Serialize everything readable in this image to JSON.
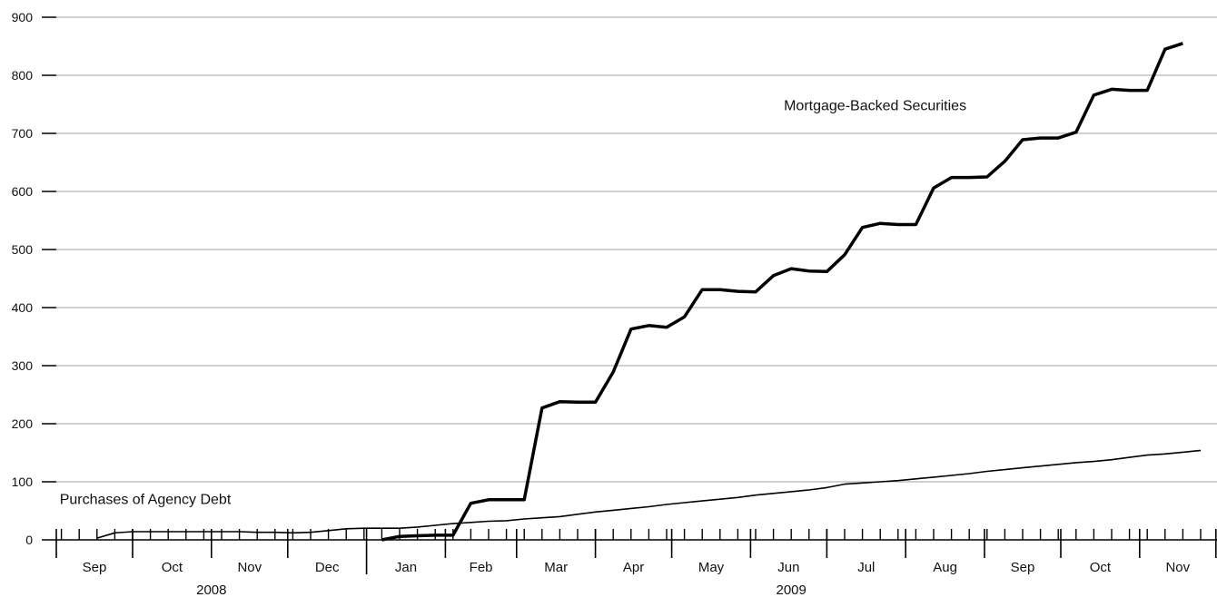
{
  "chart_data": {
    "type": "line",
    "title": "",
    "xlabel": "",
    "ylabel": "",
    "ylim": [
      0,
      900
    ],
    "yticks": [
      0,
      100,
      200,
      300,
      400,
      500,
      600,
      700,
      800,
      900
    ],
    "grid": true,
    "months": [
      {
        "label": "Sep",
        "year": 2008
      },
      {
        "label": "Oct",
        "year": 2008
      },
      {
        "label": "Nov",
        "year": 2008
      },
      {
        "label": "Dec",
        "year": 2008
      },
      {
        "label": "Jan",
        "year": 2009
      },
      {
        "label": "Feb",
        "year": 2009
      },
      {
        "label": "Mar",
        "year": 2009
      },
      {
        "label": "Apr",
        "year": 2009
      },
      {
        "label": "May",
        "year": 2009
      },
      {
        "label": "Jun",
        "year": 2009
      },
      {
        "label": "Jul",
        "year": 2009
      },
      {
        "label": "Aug",
        "year": 2009
      },
      {
        "label": "Sep",
        "year": 2009
      },
      {
        "label": "Oct",
        "year": 2009
      },
      {
        "label": "Nov",
        "year": 2009
      }
    ],
    "years": [
      {
        "label": "2008",
        "first_month": 0,
        "last_month": 3
      },
      {
        "label": "2009",
        "first_month": 4,
        "last_month": 14
      }
    ],
    "series": [
      {
        "name": "Mortgage-Backed Securities",
        "style": "thick",
        "color": "#000000",
        "points": [
          [
            "2009-01-07",
            0
          ],
          [
            "2009-01-14",
            6
          ],
          [
            "2009-01-21",
            7
          ],
          [
            "2009-01-28",
            8
          ],
          [
            "2009-02-04",
            8
          ],
          [
            "2009-02-11",
            63
          ],
          [
            "2009-02-18",
            69
          ],
          [
            "2009-02-25",
            69
          ],
          [
            "2009-03-04",
            69
          ],
          [
            "2009-03-11",
            227
          ],
          [
            "2009-03-18",
            238
          ],
          [
            "2009-03-25",
            237
          ],
          [
            "2009-04-01",
            237
          ],
          [
            "2009-04-08",
            289
          ],
          [
            "2009-04-15",
            363
          ],
          [
            "2009-04-22",
            369
          ],
          [
            "2009-04-29",
            366
          ],
          [
            "2009-05-06",
            384
          ],
          [
            "2009-05-13",
            431
          ],
          [
            "2009-05-20",
            431
          ],
          [
            "2009-05-27",
            428
          ],
          [
            "2009-06-03",
            427
          ],
          [
            "2009-06-10",
            455
          ],
          [
            "2009-06-17",
            467
          ],
          [
            "2009-06-24",
            463
          ],
          [
            "2009-07-01",
            462
          ],
          [
            "2009-07-08",
            491
          ],
          [
            "2009-07-15",
            538
          ],
          [
            "2009-07-22",
            545
          ],
          [
            "2009-07-29",
            543
          ],
          [
            "2009-08-05",
            543
          ],
          [
            "2009-08-12",
            606
          ],
          [
            "2009-08-19",
            624
          ],
          [
            "2009-08-26",
            624
          ],
          [
            "2009-09-02",
            625
          ],
          [
            "2009-09-09",
            652
          ],
          [
            "2009-09-16",
            689
          ],
          [
            "2009-09-23",
            692
          ],
          [
            "2009-09-30",
            692
          ],
          [
            "2009-10-07",
            702
          ],
          [
            "2009-10-14",
            766
          ],
          [
            "2009-10-21",
            776
          ],
          [
            "2009-10-28",
            774
          ],
          [
            "2009-11-04",
            774
          ],
          [
            "2009-11-11",
            845
          ],
          [
            "2009-11-18",
            855
          ]
        ]
      },
      {
        "name": "Purchases of Agency Debt",
        "style": "thin",
        "color": "#000000",
        "points": [
          [
            "2008-09-17",
            3
          ],
          [
            "2008-09-24",
            12
          ],
          [
            "2008-10-01",
            14
          ],
          [
            "2008-10-08",
            14
          ],
          [
            "2008-10-15",
            14
          ],
          [
            "2008-10-22",
            14
          ],
          [
            "2008-10-29",
            14
          ],
          [
            "2008-11-05",
            14
          ],
          [
            "2008-11-12",
            14
          ],
          [
            "2008-11-19",
            13
          ],
          [
            "2008-11-26",
            13
          ],
          [
            "2008-12-03",
            12
          ],
          [
            "2008-12-10",
            13
          ],
          [
            "2008-12-17",
            16
          ],
          [
            "2008-12-24",
            19
          ],
          [
            "2008-12-31",
            20
          ],
          [
            "2009-01-07",
            20
          ],
          [
            "2009-01-14",
            20
          ],
          [
            "2009-01-21",
            22
          ],
          [
            "2009-01-28",
            25
          ],
          [
            "2009-02-04",
            28
          ],
          [
            "2009-02-11",
            30
          ],
          [
            "2009-02-18",
            32
          ],
          [
            "2009-02-25",
            33
          ],
          [
            "2009-03-04",
            36
          ],
          [
            "2009-03-11",
            38
          ],
          [
            "2009-03-18",
            40
          ],
          [
            "2009-03-25",
            44
          ],
          [
            "2009-04-01",
            48
          ],
          [
            "2009-04-08",
            51
          ],
          [
            "2009-04-15",
            54
          ],
          [
            "2009-04-22",
            57
          ],
          [
            "2009-04-29",
            61
          ],
          [
            "2009-05-06",
            64
          ],
          [
            "2009-05-13",
            67
          ],
          [
            "2009-05-20",
            70
          ],
          [
            "2009-05-27",
            73
          ],
          [
            "2009-06-03",
            77
          ],
          [
            "2009-06-10",
            80
          ],
          [
            "2009-06-17",
            83
          ],
          [
            "2009-06-24",
            86
          ],
          [
            "2009-07-01",
            90
          ],
          [
            "2009-07-08",
            96
          ],
          [
            "2009-07-15",
            98
          ],
          [
            "2009-07-22",
            100
          ],
          [
            "2009-07-29",
            102
          ],
          [
            "2009-08-05",
            105
          ],
          [
            "2009-08-12",
            108
          ],
          [
            "2009-08-19",
            111
          ],
          [
            "2009-08-26",
            114
          ],
          [
            "2009-09-02",
            118
          ],
          [
            "2009-09-09",
            121
          ],
          [
            "2009-09-16",
            124
          ],
          [
            "2009-09-23",
            127
          ],
          [
            "2009-09-30",
            130
          ],
          [
            "2009-10-07",
            133
          ],
          [
            "2009-10-14",
            135
          ],
          [
            "2009-10-21",
            138
          ],
          [
            "2009-10-28",
            142
          ],
          [
            "2009-11-04",
            146
          ],
          [
            "2009-11-11",
            148
          ],
          [
            "2009-11-18",
            151
          ],
          [
            "2009-11-25",
            154
          ]
        ]
      }
    ],
    "annotations": [
      {
        "text": "Mortgage-Backed Securities",
        "at": [
          "2009-07-20",
          740
        ]
      },
      {
        "text": "Purchases of Agency Debt",
        "at": [
          "2008-10-06",
          62
        ]
      }
    ]
  }
}
